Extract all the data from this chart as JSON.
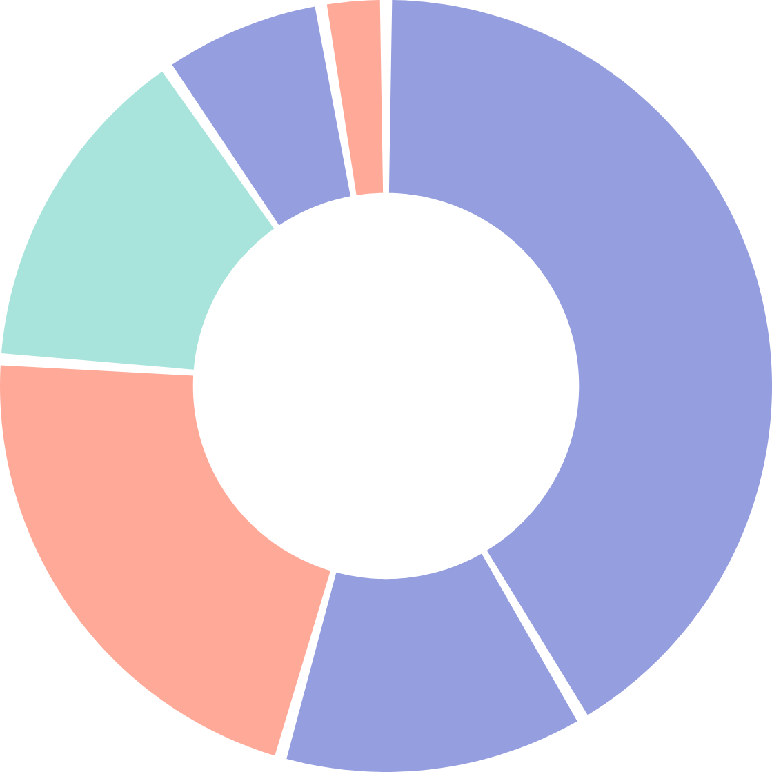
{
  "chart_data": {
    "type": "donut",
    "categories": [
      null,
      null,
      null,
      null,
      null,
      null
    ],
    "values": [
      41.5,
      12.9,
      21.7,
      14.3,
      6.9,
      2.7
    ],
    "colors": [
      "#959ede",
      "#959ede",
      "#ffaa99",
      "#a8e4dc",
      "#959ede",
      "#ffaa99"
    ]
  }
}
